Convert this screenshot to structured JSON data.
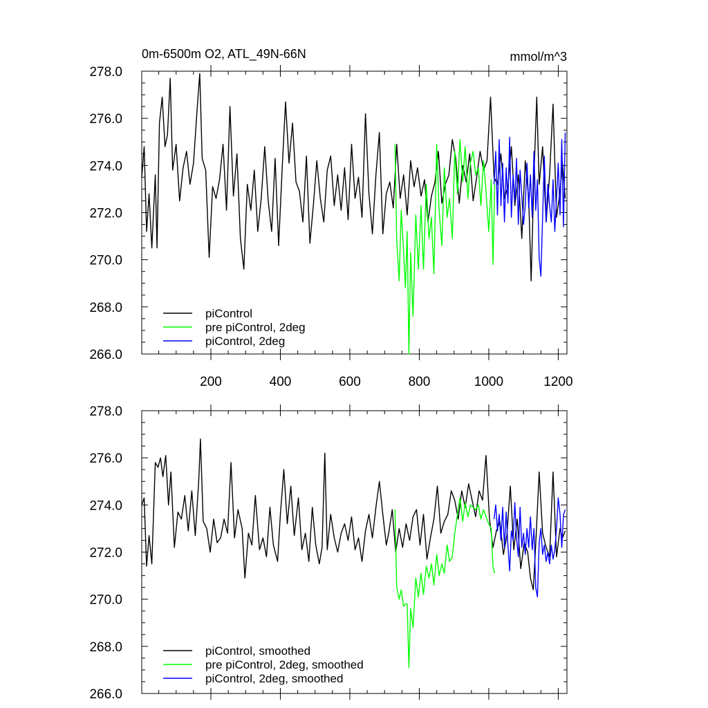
{
  "figure": {
    "title": "0m-6500m O2, ATL_49N-66N",
    "units": "mmol/m^3"
  },
  "colors": {
    "piControl": "#000000",
    "pre_piControl_2deg": "#00ff00",
    "piControl_2deg": "#0000ff"
  },
  "chart_data": [
    {
      "type": "line",
      "title": "0m-6500m O2, ATL_49N-66N",
      "units": "mmol/m^3",
      "xlabel": "",
      "ylabel": "",
      "xlim": [
        1,
        1225
      ],
      "ylim": [
        266.0,
        278.0
      ],
      "xticks": [
        200,
        400,
        600,
        800,
        1000,
        1200
      ],
      "xtick_labels": [
        "200",
        "400",
        "600",
        "800",
        "1000",
        "1200"
      ],
      "yticks": [
        266.0,
        268.0,
        270.0,
        272.0,
        274.0,
        276.0,
        278.0
      ],
      "ytick_labels": [
        "266.0",
        "268.0",
        "270.0",
        "272.0",
        "274.0",
        "276.0",
        "278.0"
      ],
      "legend_position": "bottom-left",
      "series": [
        {
          "name": "piControl",
          "color": "#000000",
          "x": [
            1,
            8,
            15,
            22,
            30,
            40,
            45,
            52,
            60,
            68,
            75,
            83,
            90,
            100,
            110,
            120,
            130,
            140,
            150,
            160,
            168,
            175,
            185,
            195,
            205,
            215,
            225,
            235,
            245,
            255,
            265,
            275,
            285,
            295,
            305,
            315,
            325,
            335,
            345,
            355,
            365,
            375,
            385,
            395,
            405,
            415,
            425,
            435,
            445,
            455,
            465,
            475,
            485,
            495,
            505,
            515,
            525,
            535,
            545,
            555,
            565,
            575,
            585,
            595,
            605,
            615,
            625,
            635,
            645,
            655,
            665,
            675,
            685,
            695,
            705,
            715,
            725,
            735,
            745,
            755,
            765,
            775,
            785,
            795,
            805,
            815,
            825,
            835,
            845,
            855,
            865,
            875,
            885,
            895,
            905,
            915,
            925,
            935,
            945,
            955,
            965,
            975,
            985,
            995,
            1005,
            1015,
            1025,
            1035,
            1045,
            1055,
            1065,
            1075,
            1085,
            1095,
            1105,
            1115,
            1122,
            1130,
            1138,
            1145,
            1155,
            1165,
            1175,
            1185,
            1195,
            1205,
            1212,
            1220
          ],
          "values": [
            273.5,
            274.8,
            271.2,
            272.8,
            270.5,
            273.6,
            270.5,
            275.8,
            276.9,
            274.8,
            275.3,
            277.7,
            273.8,
            274.9,
            272.5,
            273.9,
            274.6,
            273.2,
            274.1,
            276.3,
            277.9,
            274.3,
            273.8,
            270.1,
            273.1,
            272.6,
            273.4,
            274.9,
            272.1,
            276.5,
            272.7,
            274.5,
            270.9,
            269.6,
            273.2,
            272.1,
            273.8,
            271.2,
            272.6,
            274.8,
            272.5,
            271.2,
            274.3,
            270.6,
            273.8,
            276.7,
            274.1,
            275.8,
            273.3,
            272.9,
            271.6,
            274.4,
            270.7,
            272.3,
            274.2,
            272.6,
            271.6,
            273.8,
            274.4,
            272.3,
            273.6,
            272.1,
            273.9,
            271.7,
            274.9,
            272.6,
            273.5,
            271.8,
            276.2,
            272.8,
            271.1,
            273.6,
            275.4,
            271.1,
            272.8,
            273.3,
            272.2,
            274.9,
            272.6,
            273.6,
            271.9,
            274.2,
            273.1,
            273.9,
            272.7,
            273.4,
            271.6,
            272.7,
            273.3,
            274.6,
            272.4,
            273.2,
            273.6,
            275.1,
            274.3,
            272.4,
            274.0,
            273.3,
            274.5,
            272.5,
            273.5,
            274.6,
            273.8,
            274.2,
            276.9,
            273.5,
            273.2,
            274.5,
            272.6,
            273.1,
            274.8,
            272.3,
            273.6,
            270.9,
            274.2,
            272.6,
            269.1,
            273.6,
            276.9,
            273.2,
            274.8,
            271.6,
            273.6,
            276.6,
            271.8,
            272.9,
            274.1,
            272.6
          ]
        },
        {
          "name": "pre piControl, 2deg",
          "color": "#00ff00",
          "x": [
            730,
            735,
            742,
            748,
            755,
            760,
            765,
            770,
            775,
            782,
            790,
            797,
            805,
            812,
            820,
            828,
            835,
            842,
            850,
            857,
            865,
            872,
            880,
            887,
            895,
            902,
            910,
            917,
            925,
            932,
            940,
            947,
            955,
            962,
            970,
            977,
            985,
            992,
            1000,
            1007,
            1012,
            1017
          ],
          "values": [
            274.9,
            270.8,
            269.1,
            272.1,
            270.3,
            268.8,
            271.2,
            266.0,
            270.3,
            267.6,
            271.9,
            269.6,
            272.3,
            269.6,
            273.2,
            270.9,
            271.8,
            269.4,
            274.9,
            272.1,
            270.6,
            273.9,
            271.8,
            272.6,
            270.9,
            274.6,
            272.8,
            275.1,
            273.3,
            274.8,
            272.6,
            274.1,
            274.6,
            273.6,
            273.9,
            272.3,
            274.2,
            272.9,
            271.2,
            273.4,
            269.8,
            273.2
          ]
        },
        {
          "name": "piControl, 2deg",
          "color": "#0000ff",
          "x": [
            1015,
            1020,
            1025,
            1030,
            1035,
            1040,
            1045,
            1050,
            1055,
            1060,
            1065,
            1070,
            1075,
            1080,
            1085,
            1090,
            1095,
            1100,
            1105,
            1110,
            1115,
            1120,
            1125,
            1130,
            1135,
            1140,
            1145,
            1150,
            1155,
            1160,
            1165,
            1170,
            1175,
            1180,
            1185,
            1190,
            1195,
            1200,
            1205,
            1210,
            1215,
            1220
          ],
          "values": [
            273.2,
            274.6,
            271.9,
            275.1,
            272.3,
            274.1,
            271.6,
            273.9,
            272.4,
            275.2,
            271.8,
            273.6,
            272.5,
            274.3,
            271.5,
            273.8,
            272.7,
            271.5,
            272.3,
            274.1,
            272.2,
            273.6,
            271.8,
            274.6,
            272.1,
            273.4,
            270.1,
            269.3,
            271.8,
            274.4,
            271.6,
            273.2,
            272.3,
            271.6,
            273.4,
            271.2,
            272.6,
            274.1,
            271.9,
            275.1,
            271.4,
            275.4
          ]
        }
      ]
    },
    {
      "type": "line",
      "title": "",
      "xlabel": "",
      "ylabel": "",
      "xlim": [
        1,
        1225
      ],
      "ylim": [
        266.0,
        278.0
      ],
      "xticks": [
        200,
        400,
        600,
        800,
        1000,
        1200
      ],
      "xtick_labels": [],
      "yticks": [
        266.0,
        268.0,
        270.0,
        272.0,
        274.0,
        276.0,
        278.0
      ],
      "ytick_labels": [
        "266.0",
        "268.0",
        "270.0",
        "272.0",
        "274.0",
        "276.0",
        "278.0"
      ],
      "legend_position": "bottom-left",
      "series": [
        {
          "name": "piControl, smoothed",
          "color": "#000000",
          "x": [
            1,
            8,
            15,
            22,
            30,
            40,
            48,
            55,
            62,
            70,
            78,
            85,
            95,
            105,
            115,
            125,
            135,
            145,
            155,
            165,
            170,
            178,
            188,
            198,
            208,
            218,
            228,
            238,
            248,
            258,
            268,
            278,
            290,
            298,
            308,
            318,
            328,
            340,
            350,
            360,
            370,
            380,
            392,
            400,
            410,
            420,
            430,
            440,
            452,
            462,
            472,
            482,
            492,
            502,
            512,
            520,
            528,
            535,
            545,
            555,
            565,
            575,
            585,
            595,
            605,
            615,
            625,
            635,
            645,
            655,
            665,
            675,
            685,
            695,
            705,
            712,
            722,
            732,
            742,
            752,
            762,
            772,
            782,
            792,
            802,
            812,
            822,
            832,
            842,
            852,
            862,
            872,
            882,
            892,
            902,
            912,
            922,
            932,
            942,
            952,
            962,
            972,
            982,
            992,
            1002,
            1012,
            1022,
            1032,
            1042,
            1052,
            1062,
            1072,
            1082,
            1092,
            1102,
            1112,
            1120,
            1128,
            1136,
            1145,
            1155,
            1165,
            1175,
            1185,
            1195,
            1205,
            1212,
            1220
          ],
          "values": [
            274.0,
            274.3,
            271.4,
            272.7,
            271.5,
            275.8,
            275.6,
            276.0,
            275.2,
            276.1,
            274.0,
            275.4,
            272.2,
            273.7,
            273.4,
            274.4,
            272.9,
            274.6,
            272.7,
            275.0,
            276.8,
            273.3,
            273.0,
            272.0,
            273.4,
            272.4,
            272.6,
            273.4,
            272.8,
            275.8,
            272.6,
            273.8,
            273.0,
            270.9,
            272.8,
            272.3,
            274.4,
            272.1,
            272.6,
            271.8,
            273.9,
            272.3,
            271.6,
            273.6,
            275.5,
            273.2,
            274.8,
            272.7,
            274.3,
            272.1,
            272.8,
            271.6,
            273.9,
            272.3,
            271.5,
            272.2,
            276.2,
            272.1,
            273.6,
            272.6,
            272.0,
            272.8,
            273.2,
            272.5,
            273.5,
            272.1,
            272.6,
            271.6,
            272.9,
            273.6,
            272.6,
            273.9,
            275.0,
            273.6,
            272.3,
            272.8,
            273.8,
            272.0,
            273.0,
            272.2,
            273.2,
            272.5,
            273.5,
            273.8,
            272.3,
            273.6,
            271.7,
            272.6,
            273.4,
            274.8,
            272.8,
            273.3,
            273.6,
            274.6,
            274.2,
            273.4,
            274.6,
            273.9,
            274.9,
            274.2,
            273.5,
            274.6,
            274.2,
            276.1,
            273.4,
            272.2,
            272.9,
            273.3,
            271.9,
            272.7,
            274.8,
            272.1,
            273.4,
            271.3,
            272.4,
            272.0,
            270.9,
            270.4,
            272.6,
            275.4,
            272.8,
            272.2,
            271.8,
            275.4,
            271.8,
            273.0,
            272.6,
            272.9
          ]
        },
        {
          "name": "pre piControl, 2deg, smoothed",
          "color": "#00ff00",
          "x": [
            730,
            735,
            742,
            748,
            755,
            760,
            765,
            770,
            775,
            782,
            790,
            797,
            805,
            812,
            820,
            828,
            835,
            842,
            850,
            857,
            865,
            872,
            880,
            887,
            895,
            902,
            910,
            917,
            925,
            932,
            940,
            947,
            955,
            962,
            970,
            977,
            985,
            992,
            1000,
            1007,
            1012,
            1017
          ],
          "values": [
            273.8,
            270.5,
            270.0,
            270.4,
            269.7,
            269.8,
            269.8,
            267.1,
            269.6,
            268.8,
            270.9,
            270.1,
            271.1,
            270.2,
            271.4,
            270.9,
            271.5,
            270.6,
            271.9,
            271.0,
            271.5,
            271.1,
            272.3,
            271.6,
            271.8,
            272.8,
            273.6,
            274.3,
            273.3,
            274.1,
            273.5,
            274.0,
            273.9,
            273.8,
            274.0,
            273.4,
            273.8,
            273.5,
            273.2,
            273.0,
            271.4,
            271.1
          ]
        },
        {
          "name": "piControl, 2deg, smoothed",
          "color": "#0000ff",
          "x": [
            1015,
            1020,
            1025,
            1030,
            1035,
            1040,
            1045,
            1050,
            1055,
            1060,
            1065,
            1070,
            1075,
            1080,
            1085,
            1090,
            1095,
            1100,
            1105,
            1110,
            1115,
            1120,
            1125,
            1130,
            1135,
            1140,
            1145,
            1150,
            1155,
            1160,
            1165,
            1170,
            1175,
            1180,
            1185,
            1190,
            1195,
            1200,
            1205,
            1210,
            1215,
            1220
          ],
          "values": [
            273.4,
            274.0,
            272.9,
            273.6,
            272.5,
            273.9,
            272.2,
            273.7,
            272.3,
            271.2,
            272.9,
            272.5,
            274.1,
            272.6,
            271.8,
            273.9,
            272.2,
            272.8,
            271.9,
            273.0,
            272.2,
            273.5,
            272.1,
            273.0,
            270.5,
            270.1,
            272.4,
            273.0,
            271.9,
            272.3,
            271.6,
            272.0,
            271.5,
            272.3,
            271.7,
            272.1,
            273.0,
            274.3,
            273.6,
            272.2,
            273.6,
            273.8
          ]
        }
      ]
    }
  ]
}
